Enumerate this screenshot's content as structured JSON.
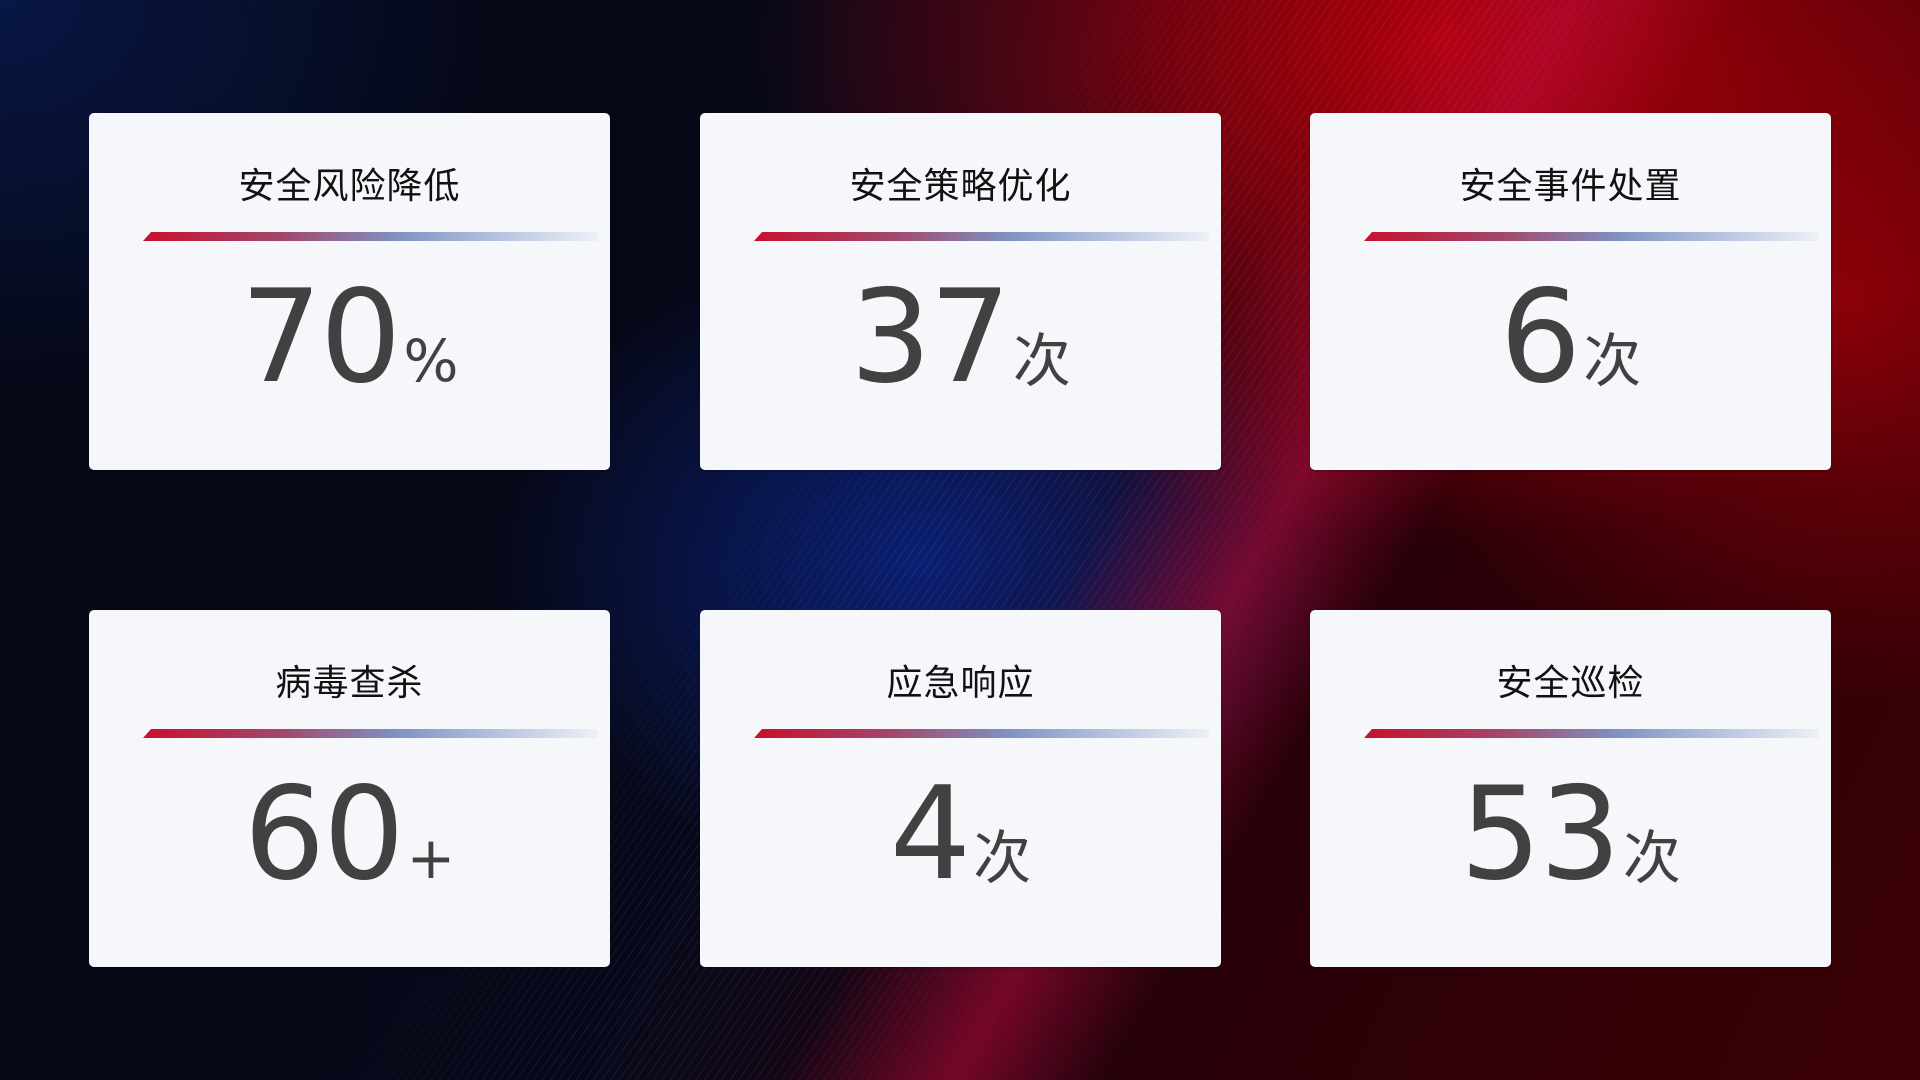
{
  "cards": [
    {
      "title": "安全风险降低",
      "value": "70",
      "unit": "%"
    },
    {
      "title": "安全策略优化",
      "value": "37",
      "unit": "次"
    },
    {
      "title": "安全事件处置",
      "value": "6",
      "unit": "次"
    },
    {
      "title": "病毒查杀",
      "value": "60",
      "unit": "+"
    },
    {
      "title": "应急响应",
      "value": "4",
      "unit": "次"
    },
    {
      "title": "安全巡检",
      "value": "53",
      "unit": "次"
    }
  ],
  "colors": {
    "accent_red": "#c8102e",
    "accent_blue": "#7f8fc0",
    "value_text": "#414141",
    "card_bg": "#f6f7fb"
  }
}
